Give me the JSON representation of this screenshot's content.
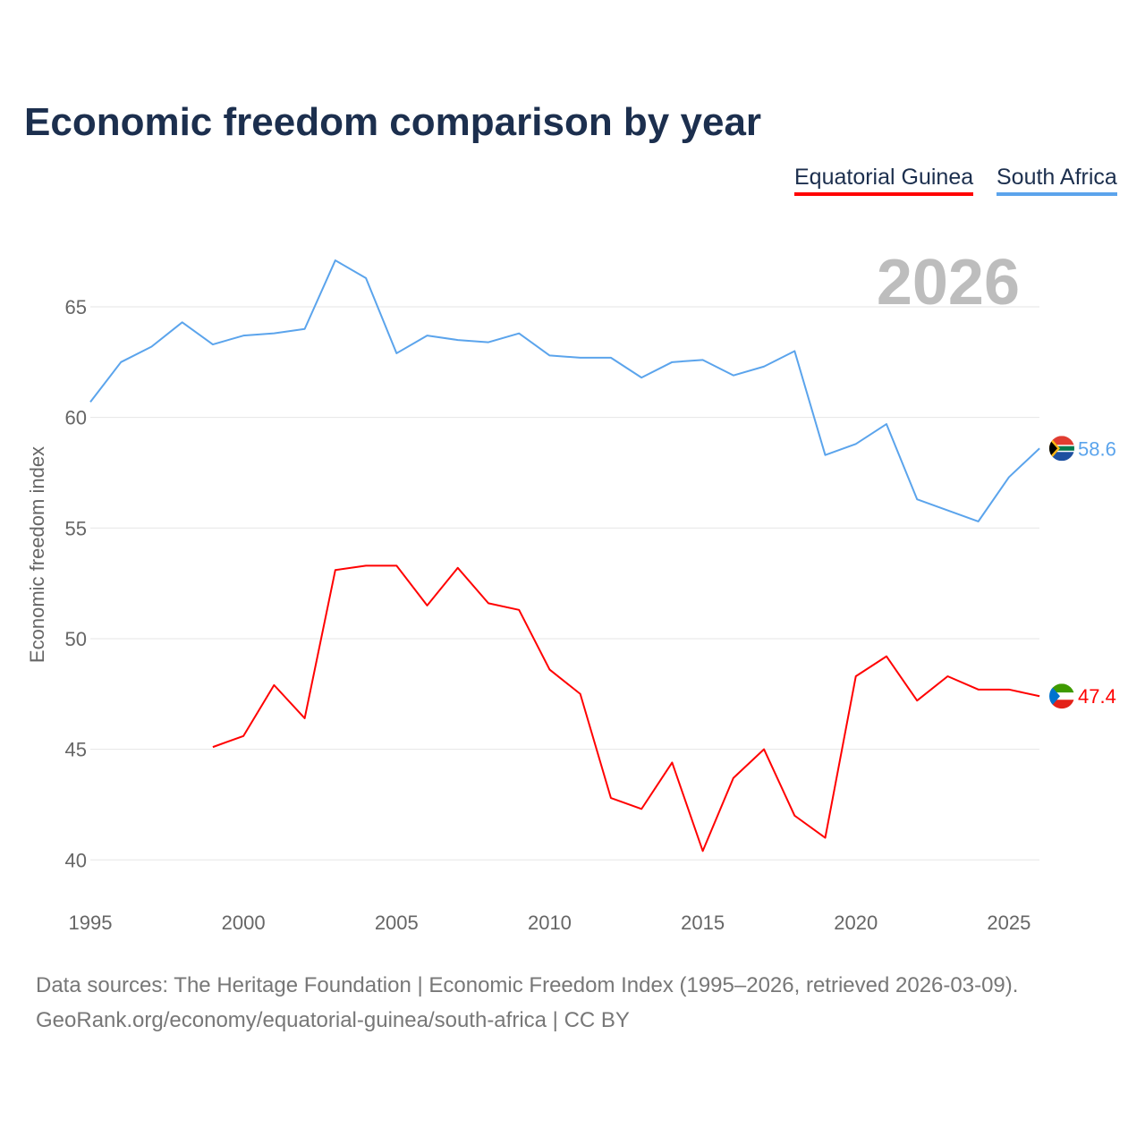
{
  "title": "Economic freedom comparison by year",
  "footer": {
    "sources": "Data sources: The Heritage Foundation | Economic Freedom Index (1995–2026, retrieved 2026-03-09).",
    "link": "GeoRank.org/economy/equatorial-guinea/south-africa | CC BY"
  },
  "chart_data": {
    "type": "line",
    "title": "Economic freedom comparison by year",
    "xlabel": "",
    "ylabel": "Economic freedom index",
    "year_watermark": "2026",
    "xlim": [
      1995,
      2026
    ],
    "ylim": [
      40,
      67.5
    ],
    "xticks": [
      "1995",
      "2000",
      "2005",
      "2010",
      "2015",
      "2020",
      "2025"
    ],
    "yticks": [
      "40",
      "45",
      "50",
      "55",
      "60",
      "65"
    ],
    "grid": true,
    "legend_position": "top-right",
    "series": [
      {
        "name": "Equatorial Guinea",
        "color": "#ff0000",
        "end_label": "47.4",
        "x": [
          1999,
          2000,
          2001,
          2002,
          2003,
          2004,
          2005,
          2006,
          2007,
          2008,
          2009,
          2010,
          2011,
          2012,
          2013,
          2014,
          2015,
          2016,
          2017,
          2018,
          2019,
          2020,
          2021,
          2022,
          2023,
          2024,
          2025,
          2026
        ],
        "values": [
          45.1,
          45.6,
          47.9,
          46.4,
          53.1,
          53.3,
          53.3,
          51.5,
          53.2,
          51.6,
          51.3,
          48.6,
          47.5,
          42.8,
          42.3,
          44.4,
          40.4,
          43.7,
          45.0,
          42.0,
          41.0,
          48.3,
          49.2,
          47.2,
          48.3,
          47.7,
          47.7,
          47.4
        ]
      },
      {
        "name": "South Africa",
        "color": "#5ba4ec",
        "end_label": "58.6",
        "x": [
          1995,
          1996,
          1997,
          1998,
          1999,
          2000,
          2001,
          2002,
          2003,
          2004,
          2005,
          2006,
          2007,
          2008,
          2009,
          2010,
          2011,
          2012,
          2013,
          2014,
          2015,
          2016,
          2017,
          2018,
          2019,
          2020,
          2021,
          2022,
          2023,
          2024,
          2025,
          2026
        ],
        "values": [
          60.7,
          62.5,
          63.2,
          64.3,
          63.3,
          63.7,
          63.8,
          64.0,
          67.1,
          66.3,
          62.9,
          63.7,
          63.5,
          63.4,
          63.8,
          62.8,
          62.7,
          62.7,
          61.8,
          62.5,
          62.6,
          61.9,
          62.3,
          63.0,
          58.3,
          58.8,
          59.7,
          56.3,
          55.8,
          55.3,
          57.3,
          58.6
        ]
      }
    ]
  }
}
